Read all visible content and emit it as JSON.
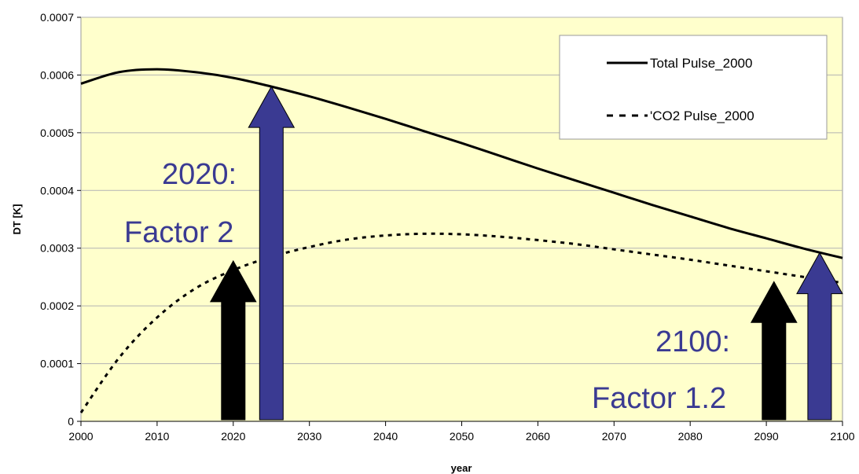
{
  "chart_data": {
    "type": "line",
    "title": "",
    "xlabel": "year",
    "ylabel": "DT [K]",
    "xlim": [
      2000,
      2100
    ],
    "ylim": [
      0,
      0.0007
    ],
    "x_ticks": [
      "2000",
      "2010",
      "2020",
      "2030",
      "2040",
      "2050",
      "2060",
      "2070",
      "2080",
      "2090",
      "2100"
    ],
    "y_ticks": [
      "0",
      "0.0001",
      "0.0002",
      "0.0003",
      "0.0004",
      "0.0005",
      "0.0006",
      "0.0007"
    ],
    "grid": true,
    "plot_background": "#FFFFCC",
    "legend_position": "top-right",
    "series": [
      {
        "name": "Total Pulse_2000",
        "style": "solid",
        "color": "#000000",
        "x": [
          2000,
          2005,
          2010,
          2015,
          2020,
          2025,
          2030,
          2035,
          2040,
          2045,
          2050,
          2055,
          2060,
          2065,
          2070,
          2075,
          2080,
          2085,
          2090,
          2095,
          2100
        ],
        "y": [
          0.000585,
          0.000605,
          0.00061,
          0.000605,
          0.000595,
          0.00058,
          0.000563,
          0.000544,
          0.000524,
          0.000503,
          0.000482,
          0.00046,
          0.000438,
          0.000417,
          0.000396,
          0.000375,
          0.000355,
          0.000335,
          0.000317,
          0.000299,
          0.000283
        ]
      },
      {
        "name": "CO2 Pulse_2000",
        "display_name": "'CO2 Pulse_2000",
        "style": "dashed",
        "color": "#000000",
        "x": [
          2000,
          2005,
          2010,
          2015,
          2020,
          2025,
          2030,
          2035,
          2040,
          2045,
          2050,
          2055,
          2060,
          2065,
          2070,
          2075,
          2080,
          2085,
          2090,
          2095,
          2100
        ],
        "y": [
          1.5e-05,
          0.00011,
          0.00018,
          0.00023,
          0.000262,
          0.000285,
          0.000302,
          0.000315,
          0.000322,
          0.000325,
          0.000324,
          0.00032,
          0.000314,
          0.000307,
          0.000298,
          0.000289,
          0.00028,
          0.00027,
          0.00026,
          0.00025,
          0.00024
        ]
      }
    ],
    "annotations": [
      {
        "text": "2020:",
        "color": "#3a3a92"
      },
      {
        "text": "Factor 2",
        "color": "#3a3a92"
      },
      {
        "text": "2100:",
        "color": "#3a3a92"
      },
      {
        "text": "Factor 1.2",
        "color": "#3a3a92"
      }
    ],
    "arrows": [
      {
        "x": 2020,
        "y_top": 0.000278,
        "color": "#000000"
      },
      {
        "x": 2025,
        "y_top": 0.00058,
        "color": "#3a3a92"
      },
      {
        "x": 2091,
        "y_top": 0.000242,
        "color": "#000000"
      },
      {
        "x": 2097,
        "y_top": 0.000292,
        "color": "#3a3a92"
      }
    ]
  }
}
